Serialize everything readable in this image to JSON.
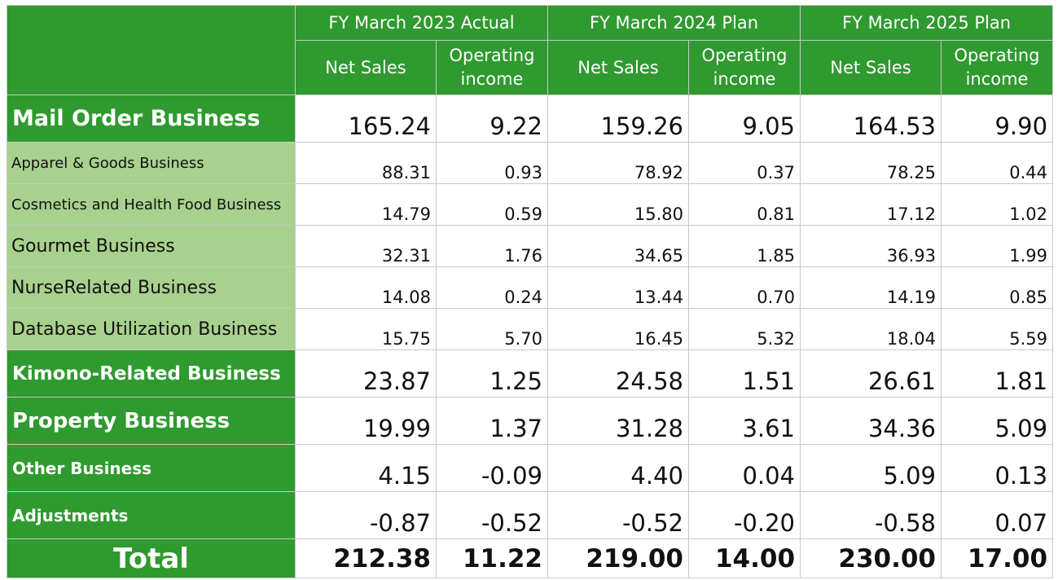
{
  "chart_data": {
    "type": "table",
    "periods": [
      {
        "label": "FY March 2023 Actual"
      },
      {
        "label": "FY March 2024 Plan"
      },
      {
        "label": "FY March 2025 Plan"
      }
    ],
    "metrics": [
      "Net Sales",
      "Operating income"
    ],
    "colors": {
      "header_green": "#2f9a2f",
      "light_green": "#a9d18e",
      "border": "#c8c8c8"
    },
    "rows": [
      {
        "label": "Mail Order Business",
        "level": "main",
        "values": [
          "165.24",
          "9.22",
          "159.26",
          "9.05",
          "164.53",
          "9.90"
        ]
      },
      {
        "label": "Apparel & Goods Business",
        "level": "sub",
        "size": "small",
        "values": [
          "88.31",
          "0.93",
          "78.92",
          "0.37",
          "78.25",
          "0.44"
        ]
      },
      {
        "label": "Cosmetics and Health Food Business",
        "level": "sub",
        "size": "small",
        "values": [
          "14.79",
          "0.59",
          "15.80",
          "0.81",
          "17.12",
          "1.02"
        ]
      },
      {
        "label": "Gourmet Business",
        "level": "sub",
        "size": "medium",
        "values": [
          "32.31",
          "1.76",
          "34.65",
          "1.85",
          "36.93",
          "1.99"
        ]
      },
      {
        "label": "NurseRelated Business",
        "level": "sub",
        "size": "medium",
        "values": [
          "14.08",
          "0.24",
          "13.44",
          "0.70",
          "14.19",
          "0.85"
        ]
      },
      {
        "label": "Database Utilization Business",
        "level": "sub",
        "size": "medium",
        "values": [
          "15.75",
          "5.70",
          "16.45",
          "5.32",
          "18.04",
          "5.59"
        ]
      },
      {
        "label": "Kimono-Related Business",
        "level": "main",
        "values": [
          "23.87",
          "1.25",
          "24.58",
          "1.51",
          "26.61",
          "1.81"
        ]
      },
      {
        "label": "Property Business",
        "level": "main",
        "values": [
          "19.99",
          "1.37",
          "31.28",
          "3.61",
          "34.36",
          "5.09"
        ]
      },
      {
        "label": "Other Business",
        "level": "main",
        "values": [
          "4.15",
          "-0.09",
          "4.40",
          "0.04",
          "5.09",
          "0.13"
        ]
      },
      {
        "label": "Adjustments",
        "level": "main",
        "values": [
          "-0.87",
          "-0.52",
          "-0.52",
          "-0.20",
          "-0.58",
          "0.07"
        ]
      },
      {
        "label": "Total",
        "level": "total",
        "values": [
          "212.38",
          "11.22",
          "219.00",
          "14.00",
          "230.00",
          "17.00"
        ]
      }
    ]
  }
}
